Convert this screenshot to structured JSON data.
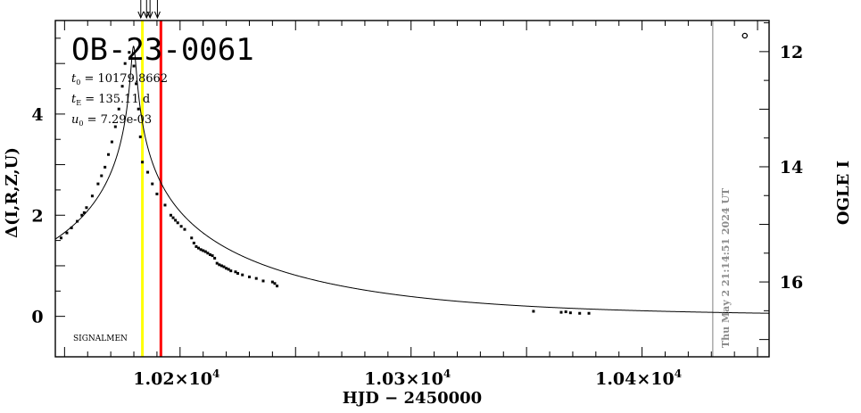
{
  "chart_data": {
    "type": "scatter",
    "title": "OB-23-0061",
    "params": [
      {
        "sym": "t",
        "sub": "0",
        "text": " = 10179.8662"
      },
      {
        "sym": "t",
        "sub": "E",
        "text": " = 135.11  d"
      },
      {
        "sym": "u",
        "sub": "0",
        "text": " = 7.29e-03"
      }
    ],
    "xlabel": "HJD  −  2450000",
    "ylabel": "Δ(I,R,Z,U)",
    "ylabel_right": "OGLE I",
    "signature": "SIGNALMEN",
    "timestamp": "Thu May  2 21:14:51 2024 UT",
    "xlim": [
      10146,
      10455
    ],
    "ylim": [
      -0.8,
      5.85
    ],
    "ylim_right": [
      11.46,
      17.3
    ],
    "x_ticks": [
      {
        "v": 10200,
        "label": "1.02×10",
        "exp": "4"
      },
      {
        "v": 10300,
        "label": "1.03×10",
        "exp": "4"
      },
      {
        "v": 10400,
        "label": "1.04×10",
        "exp": "4"
      }
    ],
    "y_ticks": [
      0,
      2,
      4
    ],
    "y_ticks_right": [
      12,
      14,
      16
    ],
    "model_curve": {
      "t0": 10179.8662,
      "tE": 135.11,
      "u0": 0.00729
    },
    "vlines": [
      {
        "x": 10183.7,
        "color": "#ffff00"
      },
      {
        "x": 10191.7,
        "color": "#ff0000"
      },
      {
        "x": 10430.6,
        "color": "#aaaaaa"
      }
    ],
    "arrows_x": [
      10183.0,
      10185.5,
      10187.0,
      10190.2
    ],
    "points": [
      [
        10148.5,
        1.55
      ],
      [
        10151.0,
        1.65
      ],
      [
        10153.0,
        1.75
      ],
      [
        10155.5,
        1.88
      ],
      [
        10157.5,
        2.0
      ],
      [
        10158.5,
        2.05
      ],
      [
        10159.5,
        2.15
      ],
      [
        10162.0,
        2.38
      ],
      [
        10164.5,
        2.62
      ],
      [
        10166.0,
        2.78
      ],
      [
        10167.5,
        2.95
      ],
      [
        10169.0,
        3.2
      ],
      [
        10170.5,
        3.45
      ],
      [
        10172.0,
        3.75
      ],
      [
        10173.5,
        4.1
      ],
      [
        10175.0,
        4.55
      ],
      [
        10176.2,
        5.0
      ],
      [
        10178.0,
        5.22
      ],
      [
        10180.0,
        4.95
      ],
      [
        10181.0,
        4.6
      ],
      [
        10182.0,
        4.1
      ],
      [
        10182.8,
        3.55
      ],
      [
        10183.7,
        3.05
      ],
      [
        10186.0,
        2.85
      ],
      [
        10188.0,
        2.62
      ],
      [
        10190.0,
        2.42
      ],
      [
        10193.5,
        2.2
      ],
      [
        10196.0,
        2.0
      ],
      [
        10197.0,
        1.95
      ],
      [
        10198.0,
        1.9
      ],
      [
        10199.0,
        1.85
      ],
      [
        10200.5,
        1.78
      ],
      [
        10202.0,
        1.72
      ],
      [
        10205.0,
        1.55
      ],
      [
        10206.0,
        1.45
      ],
      [
        10207.0,
        1.38
      ],
      [
        10208.0,
        1.35
      ],
      [
        10209.0,
        1.32
      ],
      [
        10210.0,
        1.3
      ],
      [
        10211.0,
        1.28
      ],
      [
        10212.0,
        1.25
      ],
      [
        10213.0,
        1.22
      ],
      [
        10214.0,
        1.2
      ],
      [
        10215.0,
        1.15
      ],
      [
        10216.0,
        1.05
      ],
      [
        10217.0,
        1.02
      ],
      [
        10218.0,
        1.0
      ],
      [
        10219.0,
        0.98
      ],
      [
        10220.0,
        0.95
      ],
      [
        10221.0,
        0.93
      ],
      [
        10222.0,
        0.9
      ],
      [
        10224.0,
        0.88
      ],
      [
        10225.0,
        0.85
      ],
      [
        10227.0,
        0.82
      ],
      [
        10230.0,
        0.78
      ],
      [
        10233.0,
        0.75
      ],
      [
        10236.0,
        0.7
      ],
      [
        10240.0,
        0.68
      ],
      [
        10241.0,
        0.65
      ],
      [
        10242.0,
        0.6
      ],
      [
        10353.0,
        0.1
      ],
      [
        10365.0,
        0.08
      ],
      [
        10367.0,
        0.09
      ],
      [
        10369.0,
        0.07
      ],
      [
        10373.0,
        0.06
      ],
      [
        10377.0,
        0.06
      ]
    ],
    "open_point": [
      10444.5,
      5.55
    ],
    "grid": false,
    "legend": "none"
  }
}
